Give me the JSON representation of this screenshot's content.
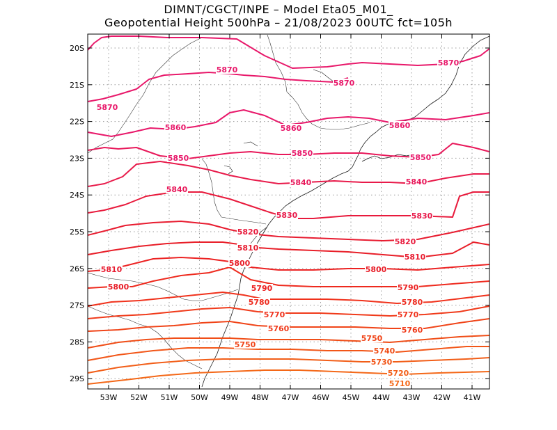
{
  "title": {
    "line1": "DIMNT/CGCT/INPE –  Model Eta05_M01_",
    "line2": "Geopotential Height 500hPa –  21/08/2023 00UTC fct=105h"
  },
  "axes": {
    "lat_labels": [
      "20S",
      "21S",
      "22S",
      "23S",
      "24S",
      "25S",
      "26S",
      "27S",
      "28S",
      "29S"
    ],
    "lon_labels": [
      "53W",
      "52W",
      "51W",
      "50W",
      "49W",
      "48W",
      "47W",
      "46W",
      "45W",
      "44W",
      "43W",
      "42W",
      "41W"
    ]
  },
  "colors": {
    "frame": "#000000",
    "grid": "#9a9a9a",
    "coast": "#1a1a1a",
    "border": "#333333"
  },
  "contours": [
    {
      "value": 5870,
      "color": "#e8186a",
      "labels": [
        "5870",
        "5870",
        "5870",
        "5870"
      ]
    },
    {
      "value": 5860,
      "color": "#e8186a",
      "labels": [
        "5860",
        "5860",
        "5860"
      ]
    },
    {
      "value": 5850,
      "color": "#e8186a",
      "labels": [
        "5850",
        "5850",
        "5850"
      ]
    },
    {
      "value": 5840,
      "color": "#e8185a",
      "labels": [
        "5840",
        "5840",
        "5840"
      ]
    },
    {
      "value": 5830,
      "color": "#e81a4a",
      "labels": [
        "5830",
        "5830"
      ]
    },
    {
      "value": 5820,
      "color": "#e81a3c",
      "labels": [
        "5820",
        "5820"
      ]
    },
    {
      "value": 5810,
      "color": "#e81c30",
      "labels": [
        "5810",
        "5810",
        "5810"
      ]
    },
    {
      "value": 5800,
      "color": "#e81e28",
      "labels": [
        "5800",
        "5800",
        "5800"
      ]
    },
    {
      "value": 5790,
      "color": "#ec2222",
      "labels": [
        "5790",
        "5790"
      ]
    },
    {
      "value": 5780,
      "color": "#ee2a1e",
      "labels": [
        "5780",
        "5780"
      ]
    },
    {
      "value": 5770,
      "color": "#f0321c",
      "labels": [
        "5770",
        "5770"
      ]
    },
    {
      "value": 5760,
      "color": "#f03a1a",
      "labels": [
        "5760",
        "5760"
      ]
    },
    {
      "value": 5750,
      "color": "#f04418",
      "labels": [
        "5750",
        "5750"
      ]
    },
    {
      "value": 5740,
      "color": "#f04e18",
      "labels": [
        "5740"
      ]
    },
    {
      "value": 5730,
      "color": "#f25618",
      "labels": [
        "5730"
      ]
    },
    {
      "value": 5720,
      "color": "#f25e18",
      "labels": [
        "5720"
      ]
    },
    {
      "value": 5710,
      "color": "#f46818",
      "labels": [
        "5710"
      ]
    }
  ]
}
